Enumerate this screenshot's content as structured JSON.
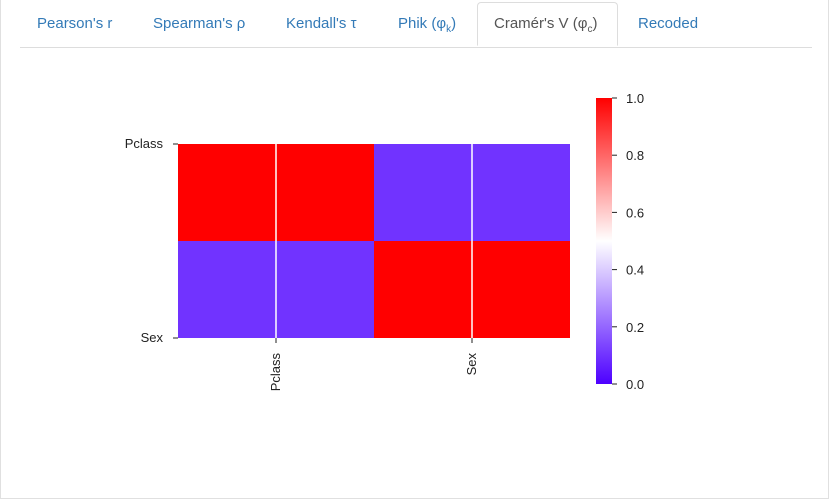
{
  "tabs": [
    {
      "label": "Pearson's r",
      "active": false
    },
    {
      "label": "Spearman's ρ",
      "active": false
    },
    {
      "label": "Kendall's τ",
      "active": false
    },
    {
      "label_main": "Phik (φ",
      "label_sub": "k",
      "label_end": ")",
      "active": false
    },
    {
      "label_main": "Cramér's V (φ",
      "label_sub": "c",
      "label_end": ")",
      "active": true
    },
    {
      "label": "Recoded",
      "active": false
    }
  ],
  "chart_data": {
    "type": "heatmap",
    "rows": [
      "Pclass",
      "Sex"
    ],
    "columns": [
      "Pclass",
      "Sex"
    ],
    "values": [
      [
        1.0,
        0.1
      ],
      [
        0.1,
        1.0
      ]
    ],
    "colorbar": {
      "min": 0.0,
      "max": 1.0,
      "ticks": [
        "0.0",
        "0.2",
        "0.4",
        "0.6",
        "0.8",
        "1.0"
      ],
      "colors": [
        "#4d00ff",
        "#ffffff",
        "#ff0000"
      ]
    }
  }
}
